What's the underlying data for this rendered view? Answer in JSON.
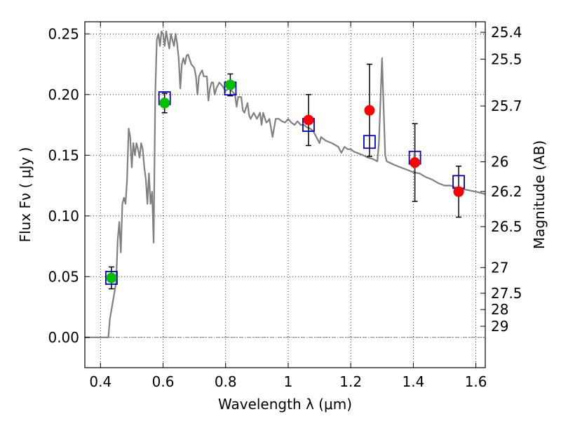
{
  "chart_data": {
    "type": "scatter",
    "xlabel": "Wavelength  λ (μm)",
    "ylabel_left": "Flux  Fν  ( μJy )",
    "ylabel_right": "Magnitude (AB)",
    "xlim": [
      0.35,
      1.63
    ],
    "ylim": [
      -0.025,
      0.26
    ],
    "grid": true,
    "x_ticks": [
      0.4,
      0.6,
      0.8,
      1.0,
      1.2,
      1.4,
      1.6
    ],
    "x_tick_labels": [
      "0.4",
      "0.6",
      "0.8",
      "1",
      "1.2",
      "1.4",
      "1.6"
    ],
    "y_ticks": [
      0.0,
      0.05,
      0.1,
      0.15,
      0.2,
      0.25
    ],
    "y_tick_labels": [
      "0.00",
      "0.05",
      "0.10",
      "0.15",
      "0.20",
      "0.25"
    ],
    "right_ticks": [
      {
        "label": "25.4",
        "flux": 0.2513
      },
      {
        "label": "25.5",
        "flux": 0.2292
      },
      {
        "label": "25.7",
        "flux": 0.1906
      },
      {
        "label": "26",
        "flux": 0.1446
      },
      {
        "label": "26.2",
        "flux": 0.1202
      },
      {
        "label": "26.5",
        "flux": 0.0912
      },
      {
        "label": "27",
        "flux": 0.0575
      },
      {
        "label": "27.5",
        "flux": 0.0363
      },
      {
        "label": "28",
        "flux": 0.0229
      },
      {
        "label": "29",
        "flux": 0.0091
      }
    ],
    "colors": {
      "model": "#808080",
      "green_points": "#00c000",
      "red_points": "#ff0000",
      "squares": "#0000cc",
      "errorbars": "#000000",
      "zero_line": "#808080"
    },
    "series": [
      {
        "style": "line",
        "points": [
          [
            0.35,
            0.0
          ],
          [
            0.42,
            0.0
          ],
          [
            0.425,
            0.0
          ],
          [
            0.43,
            0.015
          ],
          [
            0.44,
            0.03
          ],
          [
            0.45,
            0.045
          ],
          [
            0.455,
            0.08
          ],
          [
            0.46,
            0.095
          ],
          [
            0.465,
            0.07
          ],
          [
            0.47,
            0.11
          ],
          [
            0.475,
            0.115
          ],
          [
            0.48,
            0.11
          ],
          [
            0.485,
            0.13
          ],
          [
            0.49,
            0.172
          ],
          [
            0.495,
            0.165
          ],
          [
            0.5,
            0.14
          ],
          [
            0.505,
            0.16
          ],
          [
            0.51,
            0.15
          ],
          [
            0.515,
            0.16
          ],
          [
            0.52,
            0.155
          ],
          [
            0.525,
            0.148
          ],
          [
            0.53,
            0.16
          ],
          [
            0.535,
            0.155
          ],
          [
            0.54,
            0.14
          ],
          [
            0.545,
            0.13
          ],
          [
            0.55,
            0.11
          ],
          [
            0.555,
            0.135
          ],
          [
            0.56,
            0.11
          ],
          [
            0.565,
            0.12
          ],
          [
            0.57,
            0.078
          ],
          [
            0.575,
            0.2
          ],
          [
            0.58,
            0.245
          ],
          [
            0.585,
            0.25
          ],
          [
            0.59,
            0.24
          ],
          [
            0.595,
            0.252
          ],
          [
            0.6,
            0.25
          ],
          [
            0.605,
            0.24
          ],
          [
            0.61,
            0.252
          ],
          [
            0.615,
            0.245
          ],
          [
            0.62,
            0.238
          ],
          [
            0.625,
            0.25
          ],
          [
            0.63,
            0.245
          ],
          [
            0.635,
            0.24
          ],
          [
            0.64,
            0.25
          ],
          [
            0.645,
            0.242
          ],
          [
            0.65,
            0.23
          ],
          [
            0.655,
            0.205
          ],
          [
            0.66,
            0.225
          ],
          [
            0.665,
            0.23
          ],
          [
            0.67,
            0.225
          ],
          [
            0.675,
            0.232
          ],
          [
            0.68,
            0.233
          ],
          [
            0.69,
            0.225
          ],
          [
            0.7,
            0.222
          ],
          [
            0.705,
            0.215
          ],
          [
            0.71,
            0.2
          ],
          [
            0.715,
            0.215
          ],
          [
            0.72,
            0.218
          ],
          [
            0.725,
            0.22
          ],
          [
            0.73,
            0.215
          ],
          [
            0.74,
            0.215
          ],
          [
            0.745,
            0.195
          ],
          [
            0.75,
            0.205
          ],
          [
            0.755,
            0.21
          ],
          [
            0.76,
            0.21
          ],
          [
            0.765,
            0.2
          ],
          [
            0.77,
            0.205
          ],
          [
            0.78,
            0.21
          ],
          [
            0.79,
            0.207
          ],
          [
            0.8,
            0.203
          ],
          [
            0.81,
            0.205
          ],
          [
            0.82,
            0.203
          ],
          [
            0.83,
            0.2
          ],
          [
            0.835,
            0.19
          ],
          [
            0.84,
            0.198
          ],
          [
            0.85,
            0.198
          ],
          [
            0.855,
            0.187
          ],
          [
            0.86,
            0.185
          ],
          [
            0.87,
            0.193
          ],
          [
            0.875,
            0.183
          ],
          [
            0.88,
            0.18
          ],
          [
            0.89,
            0.185
          ],
          [
            0.9,
            0.18
          ],
          [
            0.91,
            0.185
          ],
          [
            0.915,
            0.175
          ],
          [
            0.92,
            0.185
          ],
          [
            0.93,
            0.177
          ],
          [
            0.935,
            0.178
          ],
          [
            0.94,
            0.18
          ],
          [
            0.95,
            0.165
          ],
          [
            0.96,
            0.18
          ],
          [
            0.97,
            0.18
          ],
          [
            0.98,
            0.178
          ],
          [
            0.99,
            0.177
          ],
          [
            1.0,
            0.18
          ],
          [
            1.01,
            0.177
          ],
          [
            1.02,
            0.175
          ],
          [
            1.03,
            0.178
          ],
          [
            1.04,
            0.175
          ],
          [
            1.05,
            0.175
          ],
          [
            1.06,
            0.173
          ],
          [
            1.07,
            0.172
          ],
          [
            1.08,
            0.17
          ],
          [
            1.09,
            0.165
          ],
          [
            1.1,
            0.16
          ],
          [
            1.105,
            0.165
          ],
          [
            1.12,
            0.162
          ],
          [
            1.14,
            0.16
          ],
          [
            1.16,
            0.157
          ],
          [
            1.17,
            0.152
          ],
          [
            1.18,
            0.157
          ],
          [
            1.19,
            0.155
          ],
          [
            1.2,
            0.155
          ],
          [
            1.21,
            0.153
          ],
          [
            1.22,
            0.152
          ],
          [
            1.24,
            0.15
          ],
          [
            1.255,
            0.148
          ],
          [
            1.27,
            0.147
          ],
          [
            1.285,
            0.145
          ],
          [
            1.29,
            0.16
          ],
          [
            1.3,
            0.23
          ],
          [
            1.305,
            0.19
          ],
          [
            1.31,
            0.15
          ],
          [
            1.315,
            0.145
          ],
          [
            1.34,
            0.142
          ],
          [
            1.36,
            0.14
          ],
          [
            1.38,
            0.138
          ],
          [
            1.4,
            0.136
          ],
          [
            1.42,
            0.135
          ],
          [
            1.44,
            0.132
          ],
          [
            1.46,
            0.13
          ],
          [
            1.48,
            0.127
          ],
          [
            1.5,
            0.125
          ],
          [
            1.52,
            0.125
          ],
          [
            1.54,
            0.123
          ],
          [
            1.56,
            0.122
          ],
          [
            1.58,
            0.121
          ],
          [
            1.6,
            0.12
          ],
          [
            1.63,
            0.118
          ]
        ]
      },
      {
        "style": "open-square",
        "points": [
          [
            0.435,
            0.049
          ],
          [
            0.605,
            0.197
          ],
          [
            0.815,
            0.205
          ],
          [
            1.065,
            0.175
          ],
          [
            1.26,
            0.161
          ],
          [
            1.405,
            0.148
          ],
          [
            1.545,
            0.128
          ]
        ]
      },
      {
        "style": "green-circle",
        "points": [
          {
            "x": 0.435,
            "y": 0.049,
            "err": 0.009
          },
          {
            "x": 0.605,
            "y": 0.193,
            "err": 0.008
          },
          {
            "x": 0.815,
            "y": 0.208,
            "err": 0.009
          }
        ]
      },
      {
        "style": "red-circle",
        "points": [
          {
            "x": 1.065,
            "y": 0.179,
            "err": 0.021
          },
          {
            "x": 1.26,
            "y": 0.187,
            "err": 0.038
          },
          {
            "x": 1.405,
            "y": 0.144,
            "err": 0.032
          },
          {
            "x": 1.545,
            "y": 0.12,
            "err": 0.021
          }
        ]
      }
    ]
  }
}
